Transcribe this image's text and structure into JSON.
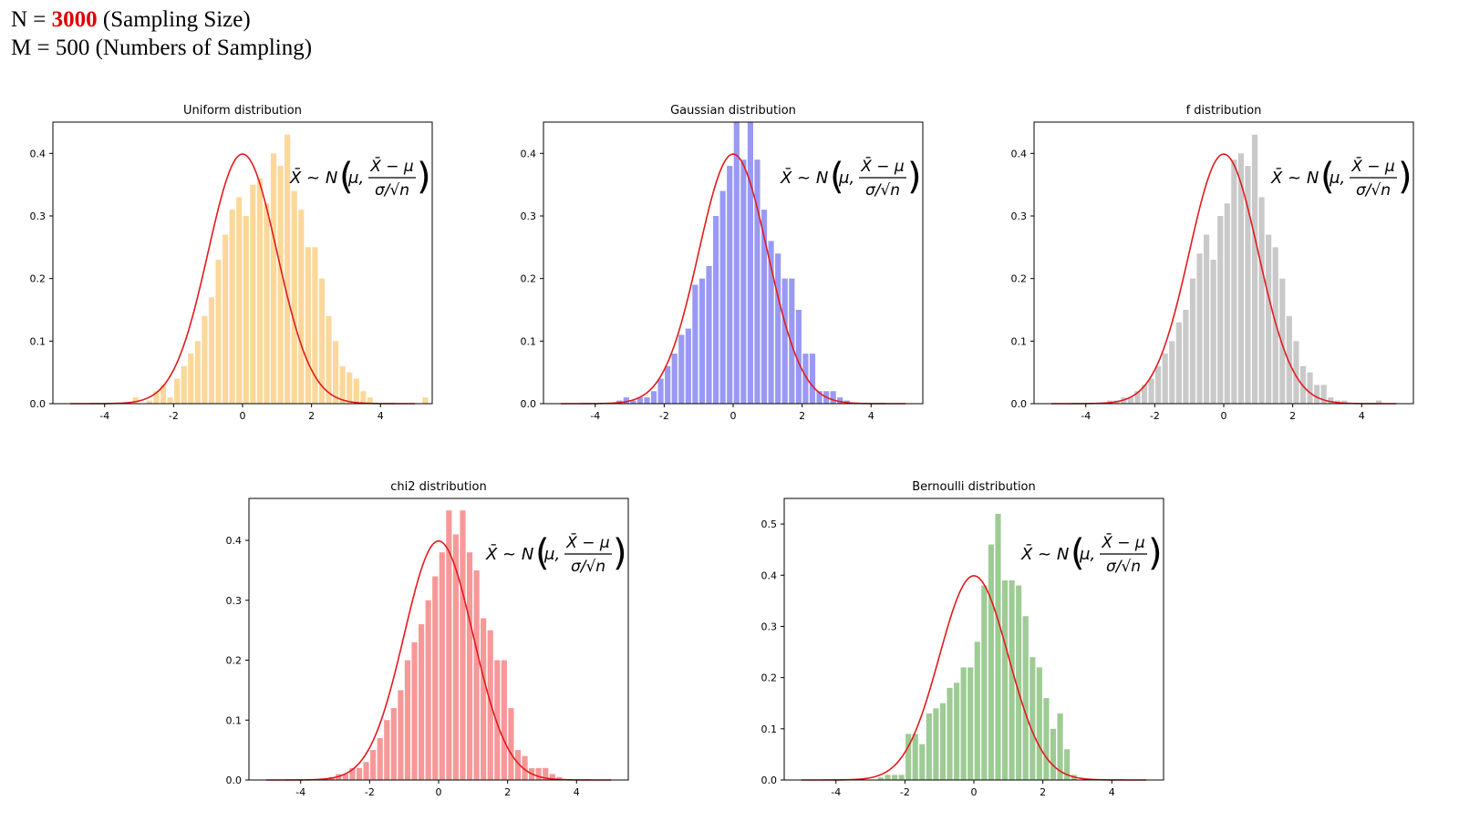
{
  "header": {
    "line1": {
      "prefix": "N = ",
      "value": "3000",
      "suffix": " (Sampling Size)"
    },
    "line2": {
      "text": "M = 500 (Numbers of Sampling)"
    }
  },
  "formula": {
    "lhs": "X̄ ~ N",
    "mu": "μ,",
    "numerator": "X̄ − μ",
    "denominator": "σ/√n"
  },
  "chart_data": [
    {
      "type": "bar",
      "title": "Uniform distribution",
      "bar_color": "#fbd89a",
      "curve_color": "#e41a1c",
      "xlim": [
        -5.5,
        5.5
      ],
      "ylim": [
        0,
        0.45
      ],
      "xticks": [
        "-4",
        "-2",
        "0",
        "2",
        "4"
      ],
      "xtick_values": [
        -4,
        -2,
        0,
        2,
        4
      ],
      "yticks": [
        "0.0",
        "0.1",
        "0.2",
        "0.3",
        "0.4"
      ],
      "ytick_values": [
        0,
        0.1,
        0.2,
        0.3,
        0.4
      ],
      "bin_start": -3.2,
      "bin_width": 0.2,
      "values": [
        0.01,
        0,
        0.005,
        0.02,
        0.03,
        0.01,
        0.04,
        0.06,
        0.08,
        0.1,
        0.14,
        0.17,
        0.23,
        0.27,
        0.31,
        0.33,
        0.3,
        0.35,
        0.36,
        0.32,
        0.4,
        0.38,
        0.43,
        0.34,
        0.31,
        0.25,
        0.25,
        0.2,
        0.14,
        0.1,
        0.06,
        0.05,
        0.04,
        0.02,
        0.01,
        0,
        0,
        0,
        0,
        0,
        0,
        0,
        0.01
      ]
    },
    {
      "type": "bar",
      "title": "Gaussian distribution",
      "bar_color": "#9999f5",
      "curve_color": "#e41a1c",
      "xlim": [
        -5.5,
        5.5
      ],
      "ylim": [
        0,
        0.45
      ],
      "xticks": [
        "-4",
        "-2",
        "0",
        "2",
        "4"
      ],
      "xtick_values": [
        -4,
        -2,
        0,
        2,
        4
      ],
      "yticks": [
        "0.0",
        "0.1",
        "0.2",
        "0.3",
        "0.4"
      ],
      "ytick_values": [
        0,
        0.1,
        0.2,
        0.3,
        0.4
      ],
      "bin_start": -3.4,
      "bin_width": 0.2,
      "values": [
        0.005,
        0.01,
        0.005,
        0.01,
        0.01,
        0.02,
        0.04,
        0.06,
        0.08,
        0.11,
        0.12,
        0.19,
        0.2,
        0.22,
        0.3,
        0.34,
        0.38,
        0.45,
        0.39,
        0.45,
        0.39,
        0.31,
        0.26,
        0.24,
        0.2,
        0.2,
        0.15,
        0.08,
        0.08,
        0.02,
        0.02,
        0.02,
        0.01,
        0.005
      ]
    },
    {
      "type": "bar",
      "title": "f distribution",
      "bar_color": "#c9c9c9",
      "curve_color": "#e41a1c",
      "xlim": [
        -5.5,
        5.5
      ],
      "ylim": [
        0,
        0.45
      ],
      "xticks": [
        "-4",
        "-2",
        "0",
        "2",
        "4"
      ],
      "xtick_values": [
        -4,
        -2,
        0,
        2,
        4
      ],
      "yticks": [
        "0.0",
        "0.1",
        "0.2",
        "0.3",
        "0.4"
      ],
      "ytick_values": [
        0,
        0.1,
        0.2,
        0.3,
        0.4
      ],
      "bin_start": -3.4,
      "bin_width": 0.2,
      "values": [
        0.005,
        0.005,
        0.01,
        0.01,
        0.02,
        0.03,
        0.04,
        0.06,
        0.08,
        0.1,
        0.13,
        0.15,
        0.2,
        0.24,
        0.27,
        0.23,
        0.3,
        0.32,
        0.39,
        0.4,
        0.38,
        0.43,
        0.33,
        0.27,
        0.25,
        0.2,
        0.14,
        0.1,
        0.06,
        0.05,
        0.03,
        0.03,
        0.01,
        0.005,
        0.005,
        0,
        0,
        0,
        0,
        0.005
      ]
    },
    {
      "type": "bar",
      "title": "chi2 distribution",
      "bar_color": "#f79898",
      "curve_color": "#e41a1c",
      "xlim": [
        -5.5,
        5.5
      ],
      "ylim": [
        0,
        0.47
      ],
      "xticks": [
        "-4",
        "-2",
        "0",
        "2",
        "4"
      ],
      "xtick_values": [
        -4,
        -2,
        0,
        2,
        4
      ],
      "yticks": [
        "0.0",
        "0.1",
        "0.2",
        "0.3",
        "0.4"
      ],
      "ytick_values": [
        0,
        0.1,
        0.2,
        0.3,
        0.4
      ],
      "bin_start": -3.2,
      "bin_width": 0.2,
      "values": [
        0.005,
        0.01,
        0.01,
        0.02,
        0.02,
        0.03,
        0.05,
        0.07,
        0.1,
        0.12,
        0.15,
        0.2,
        0.23,
        0.26,
        0.3,
        0.34,
        0.38,
        0.45,
        0.41,
        0.45,
        0.38,
        0.35,
        0.27,
        0.25,
        0.2,
        0.2,
        0.12,
        0.05,
        0.04,
        0.02,
        0.02,
        0.02,
        0.01,
        0.005
      ]
    },
    {
      "type": "bar",
      "title": "Bernoulli distribution",
      "bar_color": "#9ecb95",
      "curve_color": "#e41a1c",
      "xlim": [
        -5.5,
        5.5
      ],
      "ylim": [
        0,
        0.55
      ],
      "xticks": [
        "-4",
        "-2",
        "0",
        "2",
        "4"
      ],
      "xtick_values": [
        -4,
        -2,
        0,
        2,
        4
      ],
      "yticks": [
        "0.0",
        "0.1",
        "0.2",
        "0.3",
        "0.4",
        "0.5"
      ],
      "ytick_values": [
        0,
        0.1,
        0.2,
        0.3,
        0.4,
        0.5
      ],
      "bin_start": -2.8,
      "bin_width": 0.2,
      "values": [
        0.005,
        0.01,
        0.01,
        0.01,
        0.09,
        0.09,
        0.07,
        0.13,
        0.14,
        0.15,
        0.18,
        0.19,
        0.22,
        0.22,
        0.27,
        0.38,
        0.46,
        0.52,
        0.39,
        0.39,
        0.38,
        0.32,
        0.24,
        0.22,
        0.16,
        0.1,
        0.13,
        0.06,
        0.01
      ]
    }
  ]
}
